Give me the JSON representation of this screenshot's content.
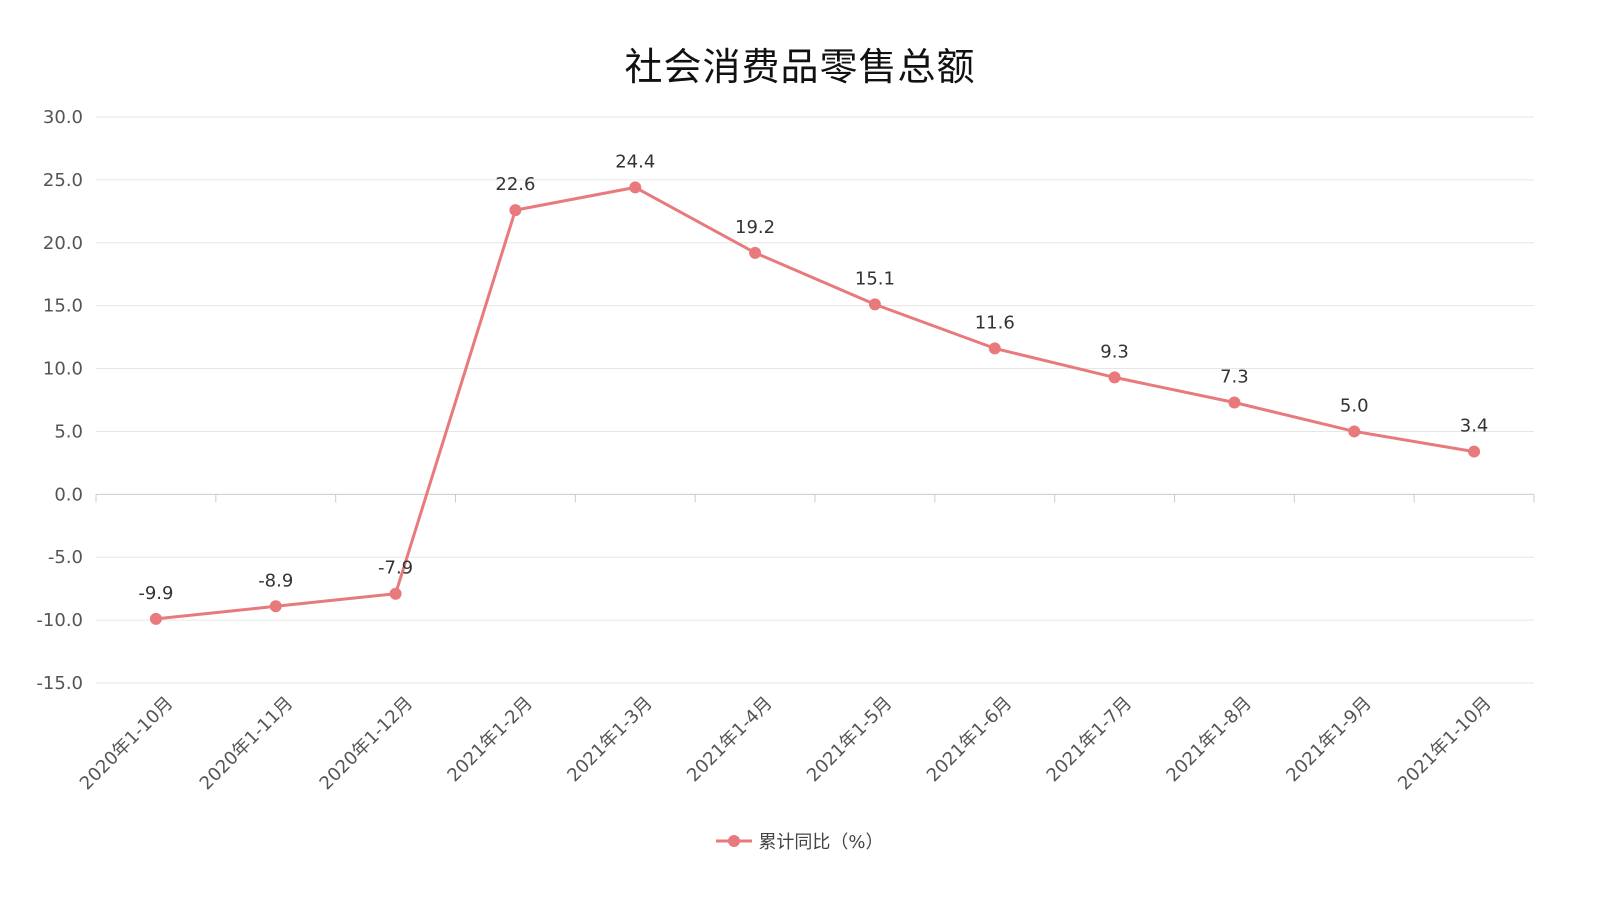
{
  "chart_data": {
    "type": "line",
    "title": "社会消费品零售总额",
    "categories": [
      "2020年1-10月",
      "2020年1-11月",
      "2020年1-12月",
      "2021年1-2月",
      "2021年1-3月",
      "2021年1-4月",
      "2021年1-5月",
      "2021年1-6月",
      "2021年1-7月",
      "2021年1-8月",
      "2021年1-9月",
      "2021年1-10月"
    ],
    "series": [
      {
        "name": "累计同比（%）",
        "values": [
          -9.9,
          -8.9,
          -7.9,
          22.6,
          24.4,
          19.2,
          15.1,
          11.6,
          9.3,
          7.3,
          5.0,
          3.4
        ],
        "labels": [
          "-9.9",
          "-8.9",
          "-7.9",
          "22.6",
          "24.4",
          "19.2",
          "15.1",
          "11.6",
          "9.3",
          "7.3",
          "5.0",
          "3.4"
        ],
        "color": "#e87a7e"
      }
    ],
    "ylim": [
      -15,
      30
    ],
    "yticks": [
      30,
      25,
      20,
      15,
      10,
      5,
      0,
      -5,
      -10,
      -15
    ],
    "ytick_labels": [
      "30.0",
      "25.0",
      "20.0",
      "15.0",
      "10.0",
      "5.0",
      "0.0",
      "-5.0",
      "-10.0",
      "-15.0"
    ],
    "grid": true,
    "legend_position": "bottom-center",
    "colors": {
      "grid": "#e6e6e6",
      "axis": "#cccccc"
    }
  }
}
